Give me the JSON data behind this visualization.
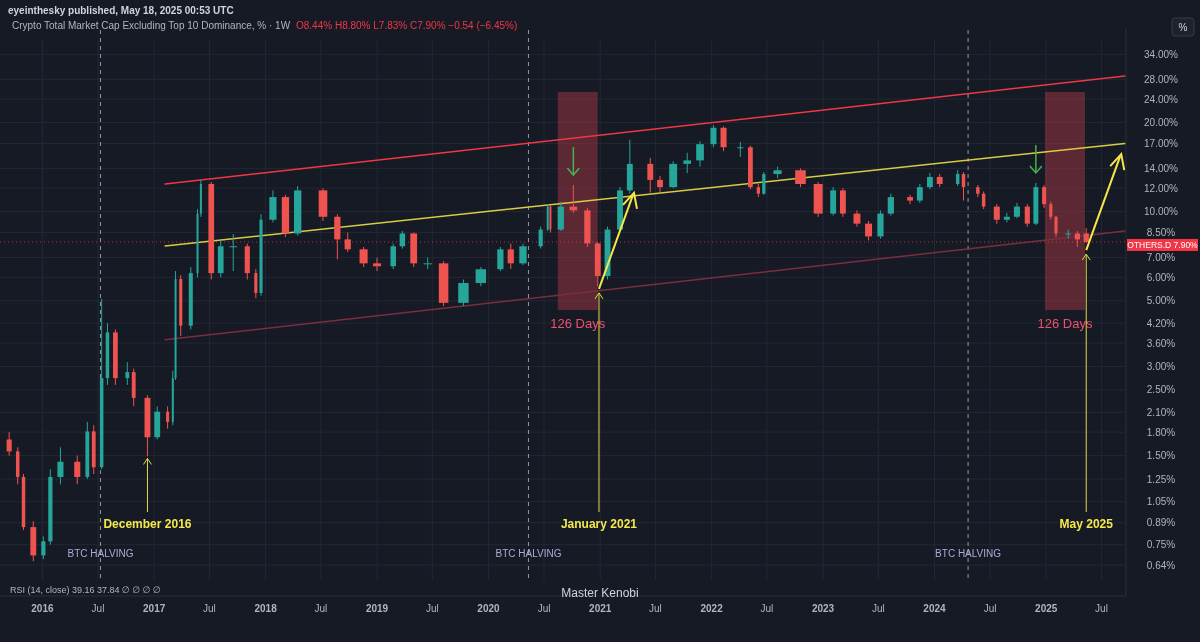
{
  "chart_data": {
    "type": "candlestick",
    "title": "Crypto Total Market Cap Excluding Top 10 Dominance, % · 1W",
    "subtitle": "O8.44% H8.80% L7.83% C7.90% −0.54 (−6.45%)",
    "x": [
      "2015-09-14",
      "2015-10-12",
      "2015-10-31",
      "2015-12-02",
      "2016-01-04",
      "2016-01-27",
      "2016-02-29",
      "2016-04-24",
      "2016-05-27",
      "2016-06-17",
      "2016-07-13",
      "2016-08-01",
      "2016-08-27",
      "2016-10-05",
      "2016-10-26",
      "2016-12-10",
      "2017-01-11",
      "2017-02-14",
      "2017-03-03",
      "2017-03-12",
      "2017-03-29",
      "2017-05-01",
      "2017-05-23",
      "2017-06-03",
      "2017-07-07",
      "2017-08-07",
      "2017-09-17",
      "2017-11-02",
      "2017-11-30",
      "2017-12-17",
      "2018-01-25",
      "2018-03-07",
      "2018-04-16",
      "2018-07-08",
      "2018-08-24",
      "2018-09-27",
      "2018-11-18",
      "2019-01-01",
      "2019-02-23",
      "2019-03-25",
      "2019-05-01",
      "2019-06-16",
      "2019-08-07",
      "2019-10-11",
      "2019-12-07",
      "2020-02-09",
      "2020-03-14",
      "2020-04-23",
      "2020-06-20",
      "2020-07-13",
      "2020-07-22",
      "2020-08-25",
      "2020-10-05",
      "2020-11-20",
      "2020-12-24",
      "2021-01-25",
      "2021-03-07",
      "2021-04-08",
      "2021-06-14",
      "2021-07-16",
      "2021-08-28",
      "2021-10-13",
      "2021-11-24",
      "2022-01-07",
      "2022-02-09",
      "2022-04-05",
      "2022-05-08",
      "2022-06-03",
      "2022-06-21",
      "2022-08-05",
      "2022-10-19",
      "2022-12-16",
      "2023-02-03",
      "2023-03-07",
      "2023-04-22",
      "2023-05-30",
      "2023-07-08",
      "2023-08-11",
      "2023-10-13",
      "2023-11-14",
      "2023-12-17",
      "2024-01-18",
      "2024-03-17",
      "2024-04-05",
      "2024-05-22",
      "2024-06-10",
      "2024-07-23",
      "2024-08-25",
      "2024-09-27",
      "2024-10-31",
      "2024-11-28",
      "2024-12-25",
      "2025-01-16",
      "2025-02-02",
      "2025-03-14",
      "2025-04-13",
      "2025-05-12"
    ],
    "ohlc": [
      [
        1.7,
        1.8,
        1.5,
        1.55
      ],
      [
        1.55,
        1.6,
        1.2,
        1.27
      ],
      [
        1.27,
        1.3,
        0.84,
        0.86
      ],
      [
        0.86,
        0.9,
        0.66,
        0.69
      ],
      [
        0.69,
        0.8,
        0.67,
        0.77
      ],
      [
        0.77,
        1.35,
        0.75,
        1.27
      ],
      [
        1.27,
        1.6,
        1.2,
        1.43
      ],
      [
        1.43,
        1.5,
        1.2,
        1.27
      ],
      [
        1.27,
        1.95,
        1.25,
        1.81
      ],
      [
        1.81,
        1.9,
        1.3,
        1.37
      ],
      [
        1.37,
        5.07,
        1.35,
        2.74
      ],
      [
        2.74,
        4.2,
        2.6,
        3.91
      ],
      [
        3.91,
        4.0,
        2.6,
        2.74
      ],
      [
        2.74,
        3.1,
        2.6,
        2.87
      ],
      [
        2.87,
        2.95,
        2.2,
        2.35
      ],
      [
        2.35,
        2.4,
        1.49,
        1.73
      ],
      [
        1.73,
        2.2,
        1.7,
        2.11
      ],
      [
        2.11,
        2.2,
        1.85,
        1.95
      ],
      [
        1.95,
        2.9,
        1.9,
        2.74
      ],
      [
        2.74,
        6.3,
        2.7,
        5.92
      ],
      [
        5.92,
        6.1,
        3.8,
        4.12
      ],
      [
        4.12,
        6.5,
        4.0,
        6.2
      ],
      [
        6.2,
        10.2,
        6.0,
        9.85
      ],
      [
        9.85,
        12.8,
        9.6,
        12.4
      ],
      [
        12.4,
        12.6,
        5.9,
        6.2
      ],
      [
        6.2,
        8.0,
        6.0,
        7.64
      ],
      [
        7.64,
        8.4,
        6.3,
        7.64
      ],
      [
        7.64,
        7.8,
        5.9,
        6.2
      ],
      [
        6.2,
        6.4,
        5.1,
        5.31
      ],
      [
        5.31,
        9.8,
        5.2,
        9.39
      ],
      [
        9.39,
        11.8,
        9.2,
        11.2
      ],
      [
        11.2,
        11.4,
        8.2,
        8.44
      ],
      [
        8.44,
        12.2,
        8.3,
        11.8
      ],
      [
        11.8,
        12.0,
        9.3,
        9.61
      ],
      [
        9.61,
        9.8,
        6.9,
        8.06
      ],
      [
        8.06,
        8.5,
        7.3,
        7.46
      ],
      [
        7.46,
        7.6,
        6.5,
        6.69
      ],
      [
        6.69,
        7.0,
        6.3,
        6.54
      ],
      [
        6.54,
        7.8,
        6.4,
        7.64
      ],
      [
        7.64,
        8.6,
        7.5,
        8.44
      ],
      [
        8.44,
        8.5,
        6.5,
        6.69
      ],
      [
        6.69,
        7.0,
        6.4,
        6.69
      ],
      [
        6.69,
        6.8,
        4.8,
        4.92
      ],
      [
        4.92,
        5.9,
        4.8,
        5.74
      ],
      [
        5.74,
        6.5,
        5.6,
        6.39
      ],
      [
        6.39,
        7.6,
        6.3,
        7.46
      ],
      [
        7.46,
        7.8,
        6.4,
        6.69
      ],
      [
        6.69,
        7.8,
        6.6,
        7.64
      ],
      [
        7.64,
        8.9,
        7.5,
        8.7
      ],
      [
        8.7,
        10.6,
        8.6,
        10.4
      ],
      [
        10.4,
        10.5,
        8.5,
        8.7
      ],
      [
        8.7,
        10.8,
        8.6,
        10.4
      ],
      [
        10.4,
        12.3,
        9.9,
        10.1
      ],
      [
        10.1,
        10.3,
        7.6,
        7.81
      ],
      [
        7.81,
        7.9,
        5.6,
        6.06
      ],
      [
        6.06,
        8.9,
        5.9,
        8.7
      ],
      [
        8.7,
        12.1,
        8.6,
        11.8
      ],
      [
        11.8,
        17.5,
        11.5,
        14.5
      ],
      [
        14.5,
        15.2,
        11.6,
        12.8
      ],
      [
        12.8,
        13.2,
        11.6,
        12.1
      ],
      [
        12.1,
        14.8,
        12.0,
        14.5
      ],
      [
        14.5,
        15.8,
        13.5,
        14.9
      ],
      [
        14.9,
        17.3,
        14.2,
        16.9
      ],
      [
        16.9,
        19.6,
        16.5,
        19.2
      ],
      [
        19.2,
        19.4,
        16.0,
        16.5
      ],
      [
        16.5,
        17.2,
        15.3,
        16.5
      ],
      [
        16.5,
        16.7,
        11.9,
        12.1
      ],
      [
        12.1,
        12.4,
        11.2,
        11.5
      ],
      [
        11.5,
        13.6,
        11.4,
        13.4
      ],
      [
        13.4,
        14.2,
        13.0,
        13.8
      ],
      [
        13.8,
        14.0,
        12.1,
        12.4
      ],
      [
        12.4,
        12.6,
        9.6,
        9.85
      ],
      [
        9.85,
        12.1,
        9.7,
        11.8
      ],
      [
        11.8,
        12.0,
        9.6,
        9.85
      ],
      [
        9.85,
        10.1,
        8.9,
        9.11
      ],
      [
        9.11,
        9.3,
        8.0,
        8.25
      ],
      [
        8.25,
        10.1,
        8.1,
        9.85
      ],
      [
        9.85,
        11.5,
        9.7,
        11.2
      ],
      [
        11.2,
        11.4,
        10.6,
        10.9
      ],
      [
        10.9,
        12.4,
        10.7,
        12.1
      ],
      [
        12.1,
        13.5,
        11.9,
        13.1
      ],
      [
        13.1,
        13.4,
        12.1,
        12.4
      ],
      [
        12.4,
        13.8,
        12.2,
        13.4
      ],
      [
        13.4,
        13.6,
        10.9,
        12.1
      ],
      [
        12.1,
        12.3,
        11.2,
        11.5
      ],
      [
        11.5,
        11.7,
        10.2,
        10.4
      ],
      [
        10.4,
        10.6,
        9.1,
        9.39
      ],
      [
        9.39,
        9.9,
        9.2,
        9.61
      ],
      [
        9.61,
        10.7,
        9.5,
        10.4
      ],
      [
        10.4,
        10.6,
        8.9,
        9.11
      ],
      [
        9.11,
        12.5,
        9.0,
        12.1
      ],
      [
        12.1,
        12.3,
        10.3,
        10.6
      ],
      [
        10.6,
        10.8,
        9.4,
        9.61
      ],
      [
        9.61,
        9.7,
        8.2,
        8.44
      ],
      [
        8.44,
        8.7,
        8.1,
        8.44
      ],
      [
        8.44,
        8.6,
        7.6,
        8.06
      ],
      [
        8.44,
        8.8,
        7.83,
        7.9
      ]
    ],
    "series": [
      {
        "type": "line",
        "color": "#f23645",
        "x": [
          "2017-02-06",
          "2025-09-16"
        ],
        "values": [
          12.4,
          28.7
        ]
      },
      {
        "type": "line",
        "color": "#d9cc45",
        "x": [
          "2017-02-06",
          "2025-09-16"
        ],
        "values": [
          7.66,
          17.0
        ]
      },
      {
        "type": "line",
        "color": "#7a2e3e",
        "x": [
          "2017-02-06",
          "2025-09-16"
        ],
        "values": [
          3.69,
          8.6
        ]
      }
    ],
    "xlim": [
      "2015-08-15",
      "2025-09-16"
    ],
    "xticks": [
      {
        "value": "2016-01-01",
        "label": "2016"
      },
      {
        "value": "2016-07-01",
        "label": "Jul"
      },
      {
        "value": "2017-01-01",
        "label": "2017"
      },
      {
        "value": "2017-07-01",
        "label": "Jul"
      },
      {
        "value": "2018-01-01",
        "label": "2018"
      },
      {
        "value": "2018-07-01",
        "label": "Jul"
      },
      {
        "value": "2019-01-01",
        "label": "2019"
      },
      {
        "value": "2019-07-01",
        "label": "Jul"
      },
      {
        "value": "2020-01-01",
        "label": "2020"
      },
      {
        "value": "2020-07-01",
        "label": "Jul"
      },
      {
        "value": "2021-01-01",
        "label": "2021"
      },
      {
        "value": "2021-07-01",
        "label": "Jul"
      },
      {
        "value": "2022-01-01",
        "label": "2022"
      },
      {
        "value": "2022-07-01",
        "label": "Jul"
      },
      {
        "value": "2023-01-01",
        "label": "2023"
      },
      {
        "value": "2023-07-01",
        "label": "Jul"
      },
      {
        "value": "2024-01-01",
        "label": "2024"
      },
      {
        "value": "2024-07-01",
        "label": "Jul"
      },
      {
        "value": "2025-01-01",
        "label": "2025"
      },
      {
        "value": "2025-07-01",
        "label": "Jul"
      }
    ],
    "ylim": [
      0.57,
      38
    ],
    "log": true,
    "grid": true,
    "yticks": [
      {
        "value": 34,
        "label": "34.00%"
      },
      {
        "value": 28,
        "label": "28.00%"
      },
      {
        "value": 24,
        "label": "24.00%"
      },
      {
        "value": 20,
        "label": "20.00%"
      },
      {
        "value": 17,
        "label": "17.00%"
      },
      {
        "value": 14,
        "label": "14.00%"
      },
      {
        "value": 12,
        "label": "12.00%"
      },
      {
        "value": 10,
        "label": "10.00%"
      },
      {
        "value": 8.5,
        "label": "8.50%"
      },
      {
        "value": 7,
        "label": "7.00%"
      },
      {
        "value": 6,
        "label": "6.00%"
      },
      {
        "value": 5,
        "label": "5.00%"
      },
      {
        "value": 4.2,
        "label": "4.20%"
      },
      {
        "value": 3.6,
        "label": "3.60%"
      },
      {
        "value": 3,
        "label": "3.00%"
      },
      {
        "value": 2.5,
        "label": "2.50%"
      },
      {
        "value": 2.1,
        "label": "2.10%"
      },
      {
        "value": 1.8,
        "label": "1.80%"
      },
      {
        "value": 1.5,
        "label": "1.50%"
      },
      {
        "value": 1.25,
        "label": "1.25%"
      },
      {
        "value": 1.05,
        "label": "1.05%"
      },
      {
        "value": 0.89,
        "label": "0.89%"
      },
      {
        "value": 0.75,
        "label": "0.75%"
      },
      {
        "value": 0.64,
        "label": "0.64%"
      }
    ],
    "ref_lines": [
      {
        "axis": "x",
        "value": "2016-07-09",
        "label": "BTC HALVING",
        "color": "#9598a1",
        "line_style": "dashed"
      },
      {
        "axis": "x",
        "value": "2020-05-11",
        "label": "BTC HALVING",
        "color": "#9598a1",
        "line_style": "dashed"
      },
      {
        "axis": "x",
        "value": "2024-04-20",
        "label": "BTC HALVING",
        "color": "#9598a1",
        "line_style": "dashed"
      },
      {
        "axis": "y",
        "value": 7.9,
        "label": "OTHERS.D 7.90%",
        "color": "#f23645",
        "line_style": "dotted"
      }
    ],
    "bands": [
      {
        "axis": "x",
        "from": "2020-08-15",
        "to": "2020-12-24",
        "label": "126 Days",
        "color": "#b23a48"
      },
      {
        "axis": "x",
        "from": "2024-12-28",
        "to": "2025-05-08",
        "label": "126 Days",
        "color": "#b23a48"
      }
    ],
    "annotations": [
      "eyeinthesky published, May 18, 2025 00:53 UTC",
      "RSI (14, close) 39.16 37.84 ∅ ∅ ∅ ∅",
      "Master Kenobi",
      "%",
      {
        "text": "December 2016",
        "x": "2016-12-10",
        "y": 1.49
      },
      {
        "text": "January 2021",
        "x": "2020-12-28",
        "y": 5.4
      },
      {
        "text": "May 2025",
        "x": "2025-05-12",
        "y": 7.3
      }
    ]
  }
}
